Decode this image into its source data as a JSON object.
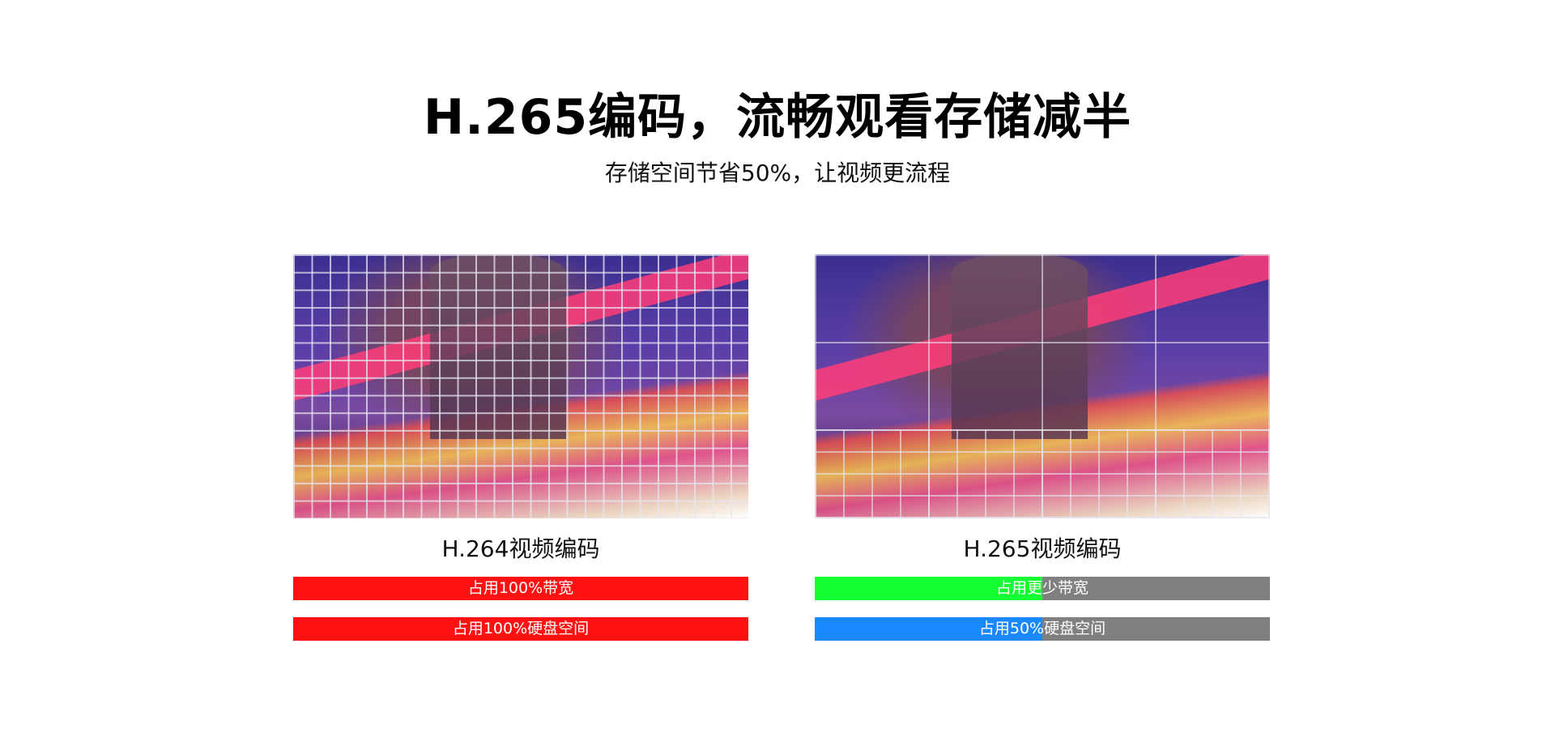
{
  "header": {
    "title": "H.265编码，流畅观看存储减半",
    "subtitle": "存储空间节省50%，让视频更流程"
  },
  "panels": [
    {
      "caption": "H.264视频编码",
      "bars": [
        {
          "label": "占用100%带宽",
          "fill_percent": 100,
          "color": "#ff1111"
        },
        {
          "label": "占用100%硬盘空间",
          "fill_percent": 100,
          "color": "#ff1111"
        }
      ]
    },
    {
      "caption": "H.265视频编码",
      "bars": [
        {
          "label": "占用更少带宽",
          "fill_percent": 50,
          "color": "#11ff33"
        },
        {
          "label": "占用50%硬盘空间",
          "fill_percent": 50,
          "color": "#1a88ff"
        }
      ]
    }
  ],
  "colors": {
    "track": "#808080"
  }
}
